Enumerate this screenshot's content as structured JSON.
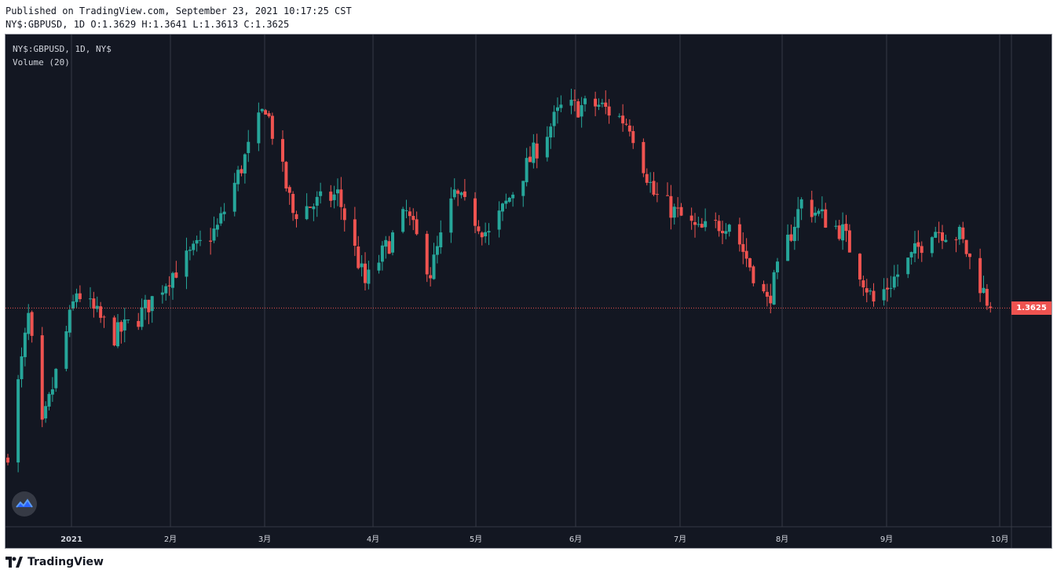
{
  "header": {
    "published": "Published on TradingView.com, September 23, 2021 10:17:25 CST",
    "ohlc_line": "NY$:GBPUSD, 1D O:1.3629 H:1.3641 L:1.3613 C:1.3625"
  },
  "legend": {
    "symbol": "NY$:GBPUSD, 1D, NY$",
    "volume": "Volume (20)"
  },
  "last_price": "1.3625",
  "footer": {
    "brand": "TradingView"
  },
  "colors": {
    "up": "#26a69a",
    "down": "#ef5350",
    "background": "#131722",
    "grid": "#363a45",
    "axis_text": "#d1d4dc"
  },
  "icons": [
    "tradingview-logo-icon"
  ],
  "chart_data": {
    "type": "candlestick",
    "symbol": "NY$:GBPUSD",
    "interval": "1D",
    "x_ticks": [
      "2021",
      "2月",
      "3月",
      "4月",
      "5月",
      "6月",
      "7月",
      "8月",
      "9月",
      "10月"
    ],
    "grid": true,
    "price_scale_visible": false,
    "ohlc_last": {
      "open": 1.3629,
      "high": 1.3641,
      "low": 1.3613,
      "close": 1.3625
    },
    "series_trend": [
      {
        "date": "2020-12-11",
        "close": 1.324
      },
      {
        "date": "2020-12-17",
        "close": 1.36
      },
      {
        "date": "2020-12-21",
        "close": 1.33
      },
      {
        "date": "2020-12-31",
        "close": 1.367
      },
      {
        "date": "2021-01-11",
        "close": 1.355
      },
      {
        "date": "2021-01-18",
        "close": 1.36
      },
      {
        "date": "2021-01-27",
        "close": 1.371
      },
      {
        "date": "2021-02-10",
        "close": 1.384
      },
      {
        "date": "2021-02-24",
        "close": 1.417
      },
      {
        "date": "2021-03-04",
        "close": 1.388
      },
      {
        "date": "2021-03-17",
        "close": 1.393
      },
      {
        "date": "2021-03-25",
        "close": 1.369
      },
      {
        "date": "2021-04-06",
        "close": 1.388
      },
      {
        "date": "2021-04-13",
        "close": 1.372
      },
      {
        "date": "2021-04-20",
        "close": 1.393
      },
      {
        "date": "2021-04-30",
        "close": 1.382
      },
      {
        "date": "2021-05-13",
        "close": 1.404
      },
      {
        "date": "2021-05-21",
        "close": 1.416
      },
      {
        "date": "2021-06-01",
        "close": 1.417
      },
      {
        "date": "2021-06-10",
        "close": 1.412
      },
      {
        "date": "2021-06-17",
        "close": 1.393
      },
      {
        "date": "2021-06-30",
        "close": 1.383
      },
      {
        "date": "2021-07-09",
        "close": 1.386
      },
      {
        "date": "2021-07-20",
        "close": 1.364
      },
      {
        "date": "2021-07-30",
        "close": 1.391
      },
      {
        "date": "2021-08-11",
        "close": 1.383
      },
      {
        "date": "2021-08-20",
        "close": 1.364
      },
      {
        "date": "2021-08-31",
        "close": 1.376
      },
      {
        "date": "2021-09-06",
        "close": 1.384
      },
      {
        "date": "2021-09-14",
        "close": 1.382
      },
      {
        "date": "2021-09-23",
        "close": 1.3625
      }
    ]
  }
}
